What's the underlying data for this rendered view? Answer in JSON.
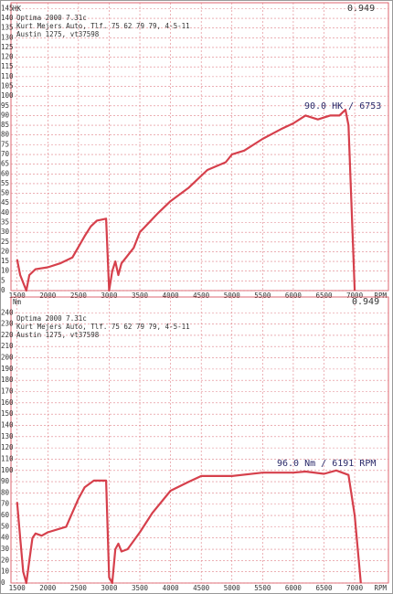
{
  "chart_data": [
    {
      "type": "line",
      "ylabel": "HK",
      "xlabel": "RPM",
      "factor": "0.949",
      "notes": [
        "Optima 2000 7.31c",
        "Kurt Mejers Auto, Tlf. 75 62 79 79, 4-5-11",
        "Austin 1275, vt37598"
      ],
      "annotation": "90.0 HK / 6753",
      "color": "#d6404c",
      "grid": true,
      "x": [
        1500,
        1550,
        1650,
        1700,
        1800,
        2000,
        2200,
        2400,
        2600,
        2700,
        2800,
        2950,
        3000,
        3050,
        3100,
        3150,
        3200,
        3300,
        3400,
        3500,
        3800,
        4000,
        4300,
        4600,
        4900,
        5000,
        5200,
        5500,
        5800,
        6000,
        6200,
        6400,
        6600,
        6750,
        6850,
        6900,
        7000
      ],
      "values": [
        16,
        8,
        0,
        8,
        11,
        12,
        14,
        17,
        28,
        33,
        36,
        37,
        0,
        10,
        15,
        8,
        14,
        18,
        22,
        30,
        40,
        46,
        53,
        62,
        66,
        70,
        72,
        78,
        83,
        86,
        90,
        88,
        90,
        90,
        93,
        85,
        0
      ],
      "xlim": [
        1400,
        7550
      ],
      "xticks": [
        1500,
        2000,
        2500,
        3000,
        3500,
        4000,
        4500,
        5000,
        5500,
        6000,
        6500,
        7000
      ],
      "ylim": [
        0,
        148
      ],
      "yticks": [
        0,
        5,
        10,
        15,
        20,
        25,
        30,
        35,
        40,
        45,
        50,
        55,
        60,
        65,
        70,
        75,
        80,
        85,
        90,
        95,
        100,
        105,
        110,
        115,
        120,
        125,
        130,
        135,
        140,
        145
      ]
    },
    {
      "type": "line",
      "ylabel": "Nm",
      "xlabel": "RPM",
      "factor": "0.949",
      "notes": [
        "Optima 2000 7.31c",
        "Kurt Mejers Auto, Tlf. 75 62 79 79, 4-5-11",
        "Austin 1275, vt37598"
      ],
      "annotation": "96.0 Nm / 6191 RPM",
      "color": "#d6404c",
      "grid": true,
      "x": [
        1500,
        1550,
        1600,
        1650,
        1700,
        1750,
        1800,
        1900,
        2000,
        2300,
        2500,
        2600,
        2750,
        2950,
        3000,
        3050,
        3100,
        3150,
        3200,
        3300,
        3500,
        3700,
        4000,
        4300,
        4500,
        5000,
        5500,
        6000,
        6200,
        6500,
        6700,
        6900,
        7000,
        7100
      ],
      "values": [
        72,
        40,
        10,
        0,
        20,
        40,
        44,
        42,
        45,
        50,
        75,
        85,
        91,
        91,
        5,
        0,
        30,
        35,
        28,
        30,
        45,
        62,
        82,
        90,
        95,
        95,
        98,
        98,
        99,
        97,
        100,
        96,
        60,
        0
      ],
      "xlim": [
        1400,
        7550
      ],
      "xticks": [
        1500,
        2000,
        2500,
        3000,
        3500,
        4000,
        4500,
        5000,
        5500,
        6000,
        6500,
        7000
      ],
      "ylim": [
        0,
        254
      ],
      "yticks": [
        0,
        10,
        20,
        30,
        40,
        50,
        60,
        70,
        80,
        90,
        100,
        110,
        120,
        130,
        140,
        150,
        160,
        170,
        180,
        190,
        200,
        210,
        220,
        230,
        240
      ]
    }
  ]
}
